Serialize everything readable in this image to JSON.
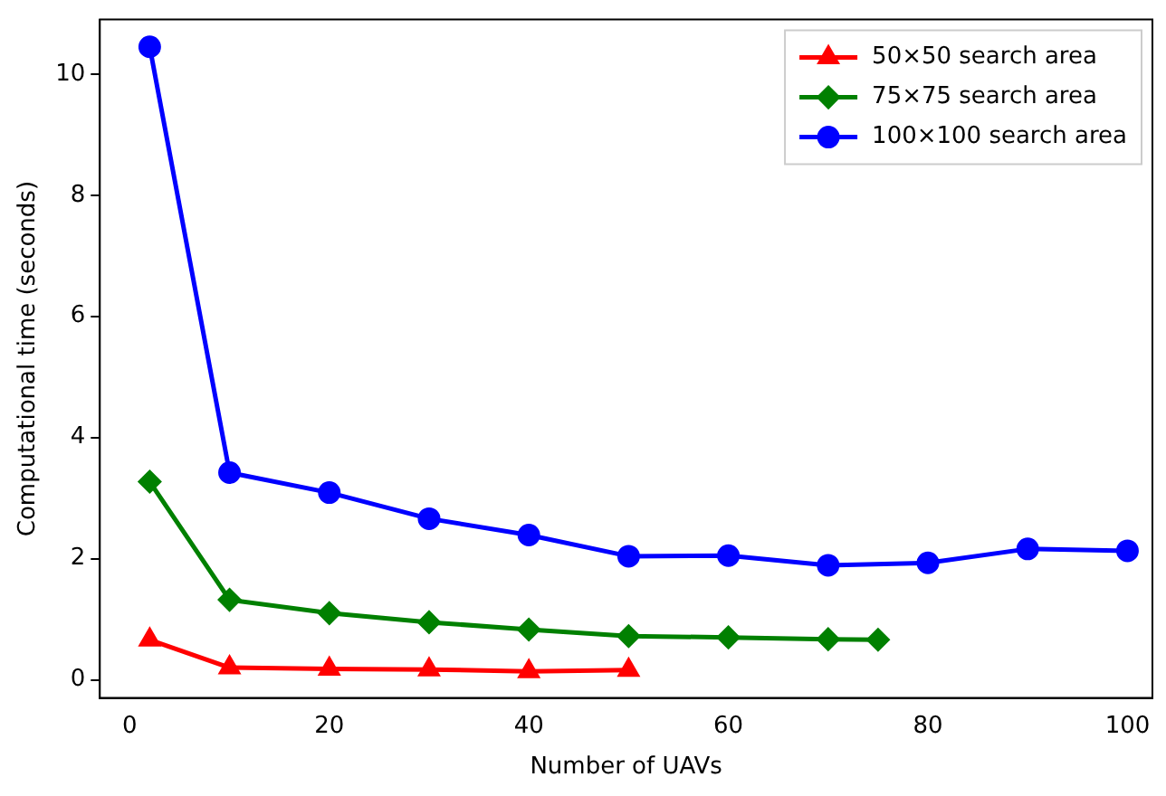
{
  "chart_data": {
    "type": "line",
    "xlabel": "Number of UAVs",
    "ylabel": "Computational time (seconds)",
    "xlim": [
      -3,
      102.5
    ],
    "xticks": [
      0,
      20,
      40,
      60,
      80,
      100
    ],
    "ylim": [
      -0.3,
      10.9
    ],
    "yticks": [
      0,
      2,
      4,
      6,
      8,
      10
    ],
    "grid": false,
    "legend": "top right",
    "line_style": "solid",
    "series": [
      {
        "name": "50×50 search area",
        "color": "#ff0000",
        "marker": "triangle",
        "x": [
          2,
          10,
          20,
          30,
          40,
          50
        ],
        "values": [
          0.66,
          0.2,
          0.18,
          0.17,
          0.14,
          0.16
        ]
      },
      {
        "name": "75×75 search area",
        "color": "#008000",
        "marker": "diamond",
        "x": [
          2,
          10,
          20,
          30,
          40,
          50,
          60,
          70,
          75
        ],
        "values": [
          3.27,
          1.32,
          1.1,
          0.95,
          0.83,
          0.72,
          0.7,
          0.67,
          0.66
        ]
      },
      {
        "name": "100×100 search area",
        "color": "#0000ff",
        "marker": "circle",
        "x": [
          2,
          10,
          20,
          30,
          40,
          50,
          60,
          70,
          80,
          90,
          100
        ],
        "values": [
          10.45,
          3.42,
          3.09,
          2.66,
          2.39,
          2.04,
          2.05,
          1.89,
          1.93,
          2.16,
          2.13
        ]
      }
    ]
  }
}
